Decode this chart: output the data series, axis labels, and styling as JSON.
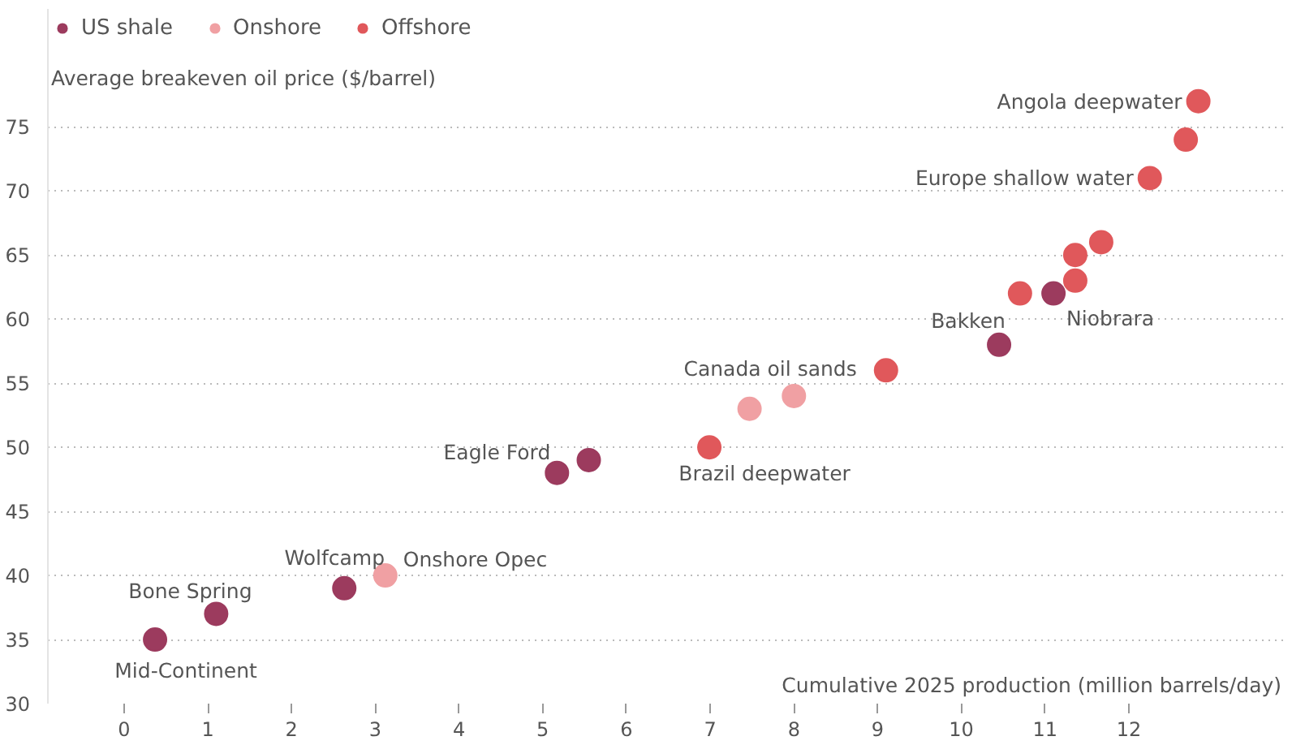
{
  "chart_data": {
    "type": "scatter",
    "xlabel": "Cumulative 2025 production (million barrels/day)",
    "ylabel": "Average breakeven oil price ($/barrel)",
    "series": [
      {
        "name": "US shale",
        "color": "#9c3b5e",
        "x": [
          0.37,
          1.1,
          2.63,
          5.17,
          5.55,
          10.45,
          11.1
        ],
        "values": [
          35,
          37,
          39,
          48,
          49,
          58,
          62
        ]
      },
      {
        "name": "Onshore",
        "color": "#f0a0a3",
        "x": [
          3.12,
          7.47,
          8.0
        ],
        "values": [
          40,
          53,
          54
        ]
      },
      {
        "name": "Offshore",
        "color": "#e0585b",
        "x": [
          6.99,
          9.1,
          10.7,
          11.36,
          11.36,
          11.67,
          12.25,
          12.68,
          12.83
        ],
        "values": [
          50,
          56,
          62,
          63,
          65,
          66,
          71,
          74,
          77
        ]
      }
    ],
    "annotations": [
      {
        "text": "Mid-Continent",
        "x": 0.37,
        "y": 35
      },
      {
        "text": "Bone Spring",
        "x": 1.1,
        "y": 37
      },
      {
        "text": "Wolfcamp",
        "x": 2.63,
        "y": 39
      },
      {
        "text": "Onshore Opec",
        "x": 3.12,
        "y": 40
      },
      {
        "text": "Eagle Ford",
        "x": 5.17,
        "y": 48
      },
      {
        "text": "Brazil deepwater",
        "x": 6.99,
        "y": 50
      },
      {
        "text": "Canada oil sands",
        "x": 9.1,
        "y": 56
      },
      {
        "text": "Bakken",
        "x": 10.45,
        "y": 58
      },
      {
        "text": "Niobrara",
        "x": 11.1,
        "y": 62
      },
      {
        "text": "Europe shallow water",
        "x": 12.25,
        "y": 71
      },
      {
        "text": "Angola deepwater",
        "x": 12.83,
        "y": 77
      }
    ],
    "xlim": [
      -0.91,
      13.9
    ],
    "ylim": [
      30,
      84.2
    ],
    "xticks": [
      0,
      1,
      2,
      3,
      4,
      5,
      6,
      7,
      8,
      9,
      10,
      11,
      12
    ],
    "yticks": [
      30,
      35,
      40,
      45,
      50,
      55,
      60,
      65,
      70,
      75
    ],
    "grid": "y",
    "legend": "top left",
    "marker": "circle"
  }
}
